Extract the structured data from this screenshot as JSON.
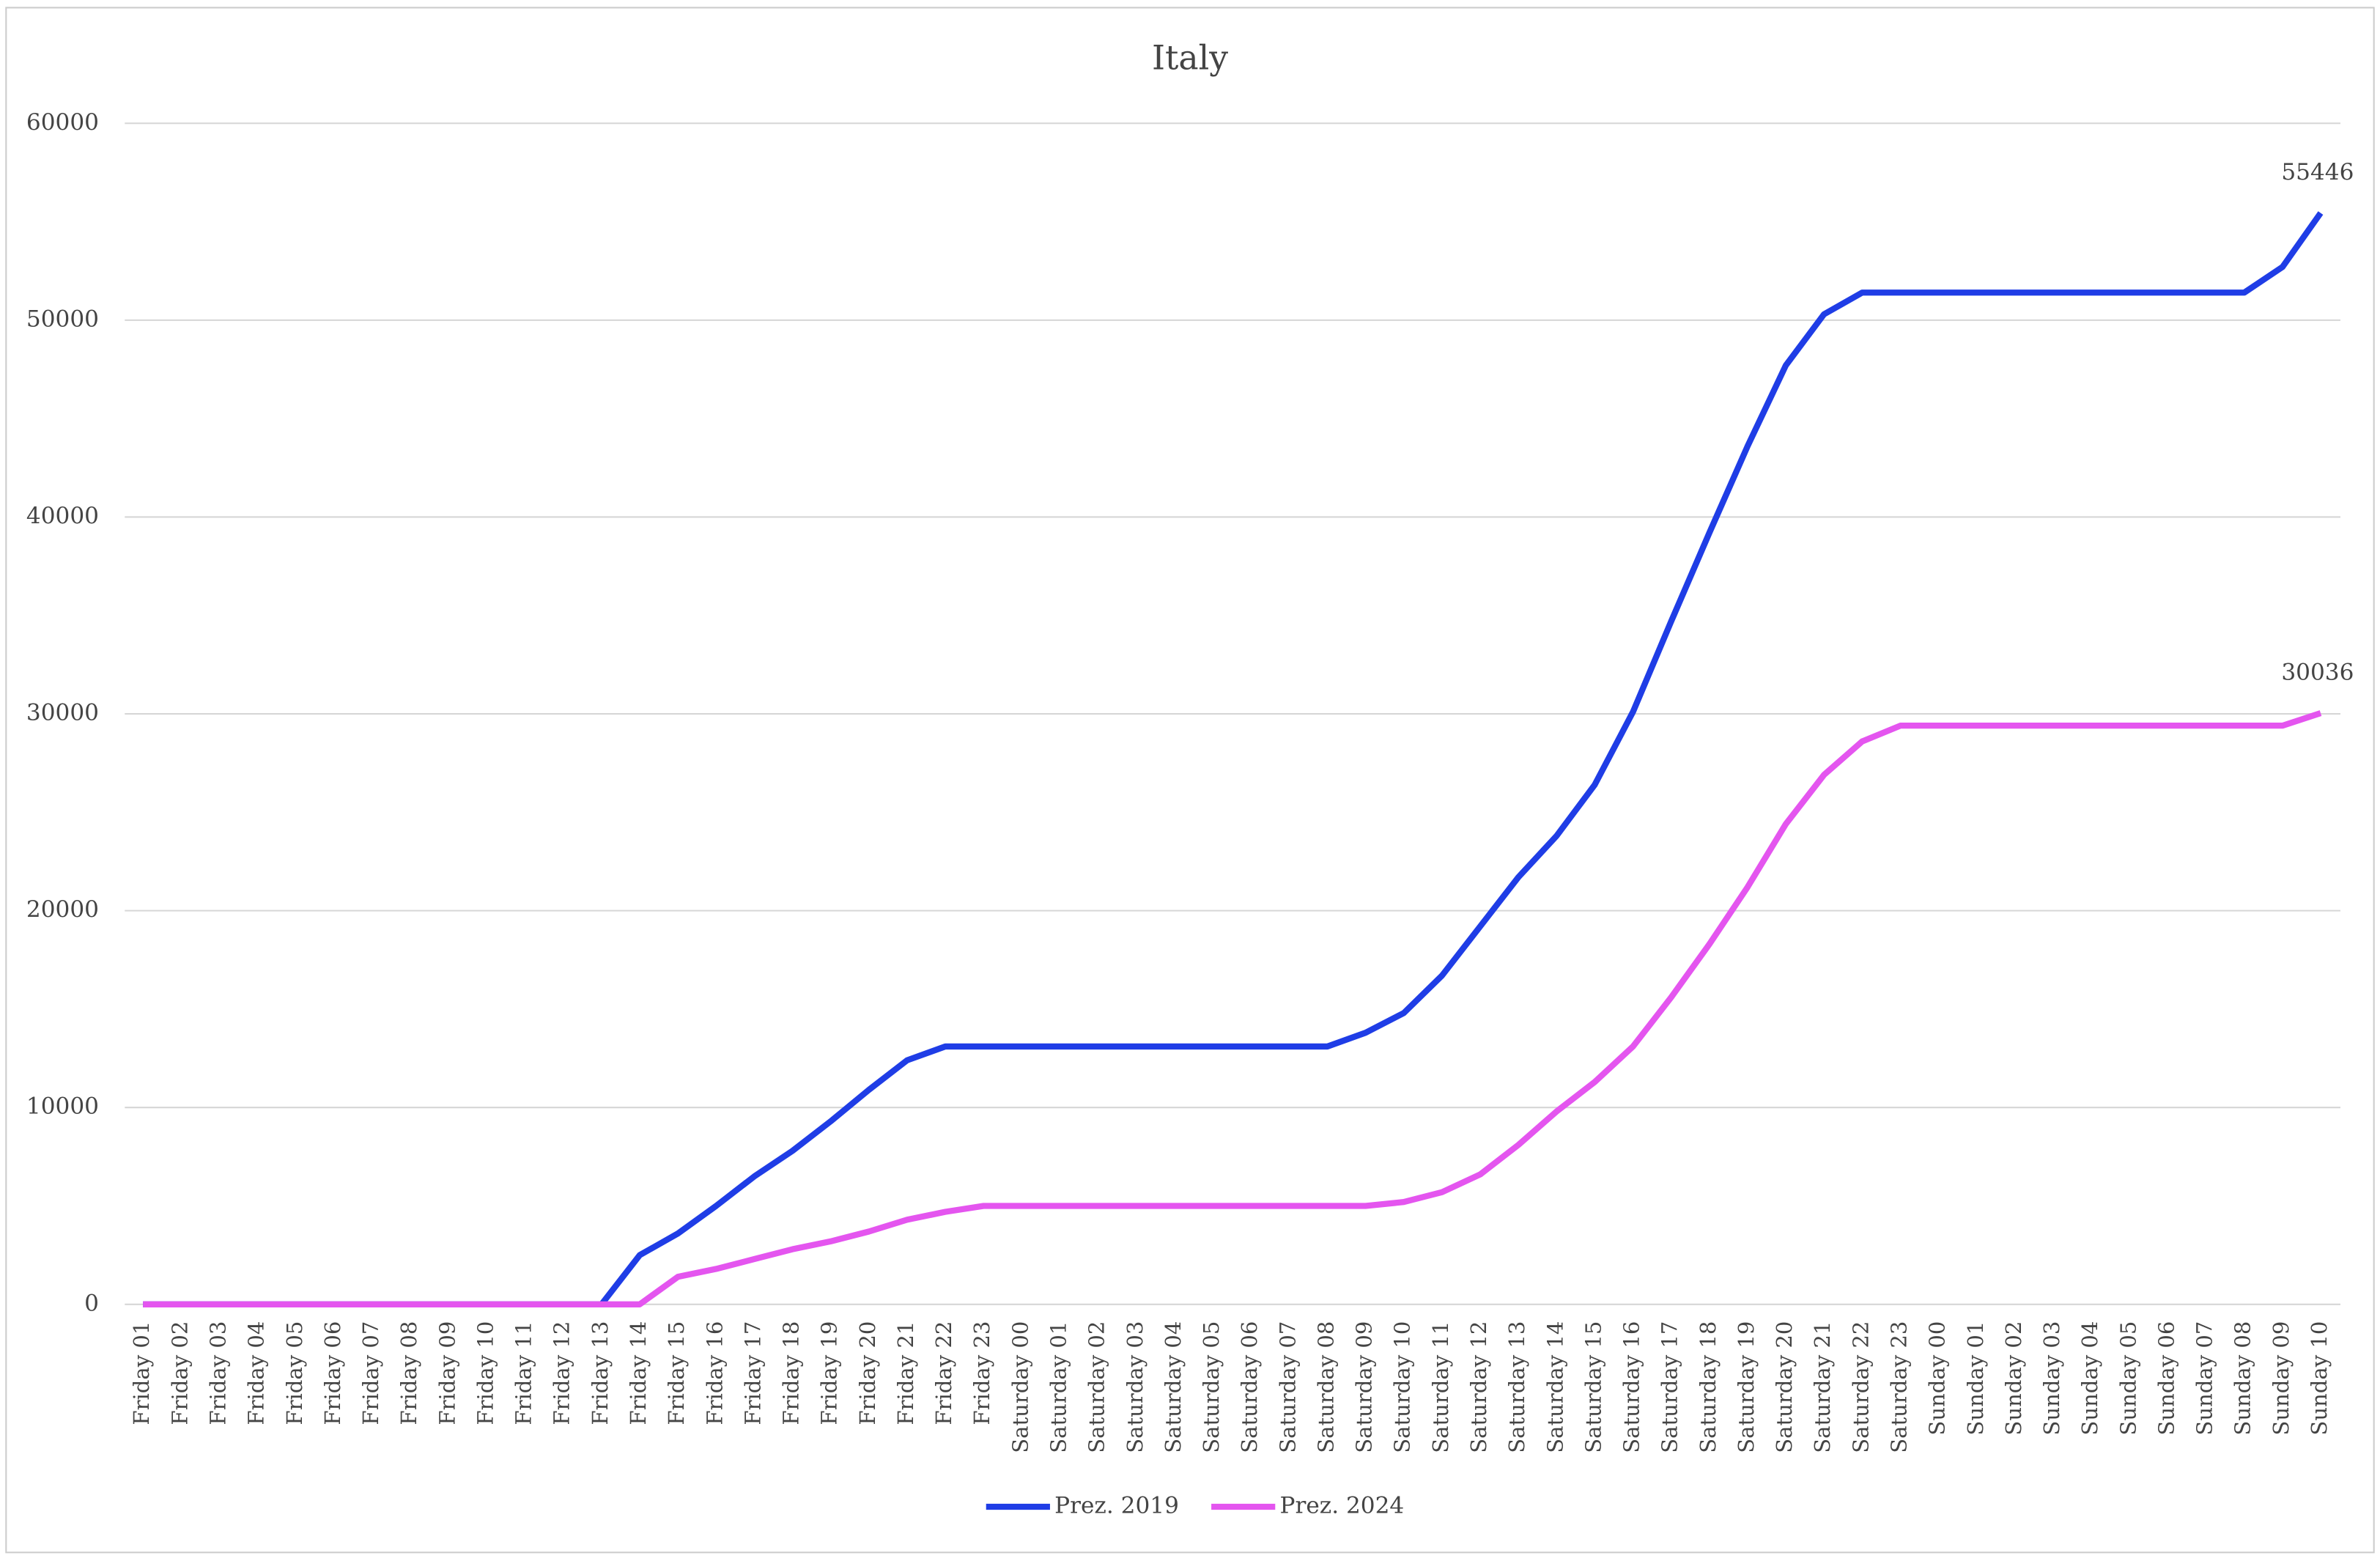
{
  "chart_data": {
    "type": "line",
    "title": "Italy",
    "categories": [
      "Friday 01",
      "Friday 02",
      "Friday 03",
      "Friday 04",
      "Friday 05",
      "Friday 06",
      "Friday 07",
      "Friday 08",
      "Friday 09",
      "Friday 10",
      "Friday 11",
      "Friday 12",
      "Friday 13",
      "Friday 14",
      "Friday 15",
      "Friday 16",
      "Friday 17",
      "Friday 18",
      "Friday 19",
      "Friday 20",
      "Friday 21",
      "Friday 22",
      "Friday 23",
      "Saturday 00",
      "Saturday 01",
      "Saturday 02",
      "Saturday 03",
      "Saturday 04",
      "Saturday 05",
      "Saturday 06",
      "Saturday 07",
      "Saturday 08",
      "Saturday 09",
      "Saturday 10",
      "Saturday 11",
      "Saturday 12",
      "Saturday 13",
      "Saturday 14",
      "Saturday 15",
      "Saturday 16",
      "Saturday 17",
      "Saturday 18",
      "Saturday 19",
      "Saturday 20",
      "Saturday 21",
      "Saturday 22",
      "Saturday 23",
      "Sunday 00",
      "Sunday 01",
      "Sunday 02",
      "Sunday 03",
      "Sunday 04",
      "Sunday 05",
      "Sunday 06",
      "Sunday 07",
      "Sunday 08",
      "Sunday 09",
      "Sunday 10"
    ],
    "series": [
      {
        "name": "Prez. 2019",
        "color": "#1f3de6",
        "values": [
          0,
          0,
          0,
          0,
          0,
          0,
          0,
          0,
          0,
          0,
          0,
          0,
          0,
          2500,
          3600,
          5000,
          6500,
          7800,
          9300,
          10900,
          12400,
          13100,
          13100,
          13100,
          13100,
          13100,
          13100,
          13100,
          13100,
          13100,
          13100,
          13100,
          13800,
          14800,
          16700,
          19200,
          21700,
          23800,
          26400,
          30100,
          34700,
          39200,
          43600,
          47700,
          50300,
          51400,
          51400,
          51400,
          51400,
          51400,
          51400,
          51400,
          51400,
          51400,
          51400,
          51400,
          52700,
          55446
        ]
      },
      {
        "name": "Prez. 2024",
        "color": "#e455ef",
        "values": [
          0,
          0,
          0,
          0,
          0,
          0,
          0,
          0,
          0,
          0,
          0,
          0,
          0,
          0,
          1400,
          1800,
          2300,
          2800,
          3200,
          3700,
          4300,
          4700,
          5000,
          5000,
          5000,
          5000,
          5000,
          5000,
          5000,
          5000,
          5000,
          5000,
          5000,
          5200,
          5700,
          6600,
          8100,
          9800,
          11300,
          13100,
          15600,
          18300,
          21200,
          24400,
          26900,
          28600,
          29400,
          29400,
          29400,
          29400,
          29400,
          29400,
          29400,
          29400,
          29400,
          29400,
          29400,
          30036
        ]
      }
    ],
    "ylim": [
      0,
      60000
    ],
    "yticks": [
      0,
      10000,
      20000,
      30000,
      40000,
      50000,
      60000
    ],
    "grid": true,
    "legend": "bottom"
  }
}
